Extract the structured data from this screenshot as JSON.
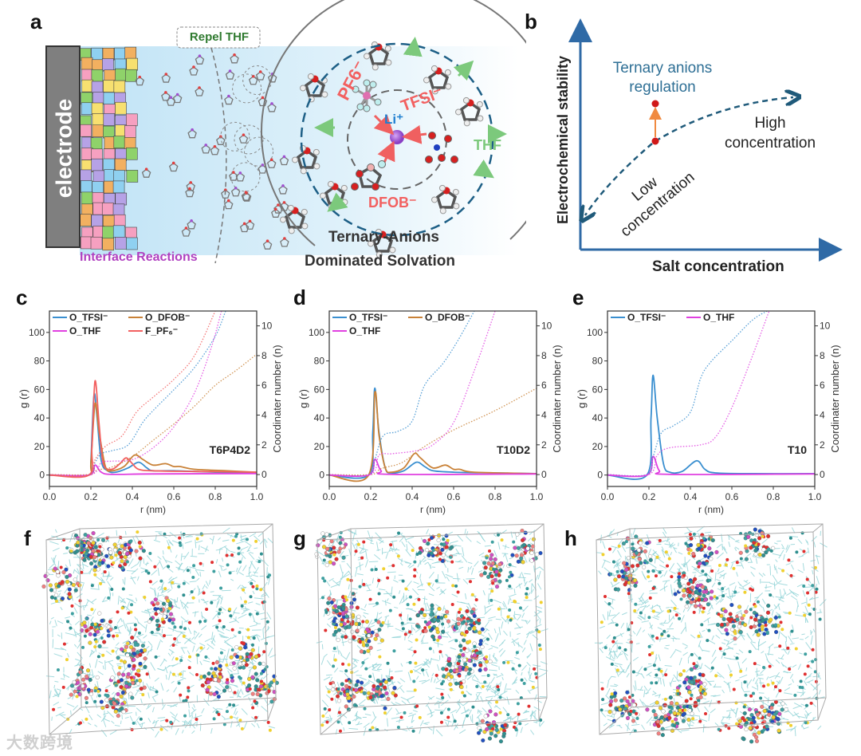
{
  "panels": {
    "a": "a",
    "b": "b",
    "c": "c",
    "d": "d",
    "e": "e",
    "f": "f",
    "g": "g",
    "h": "h"
  },
  "panel_a": {
    "electrode": "electrode",
    "repel": "Repel THF",
    "interface": "Interface Reactions",
    "solvation_line1": "Ternary-Anions",
    "solvation_line2": "Dominated Solvation",
    "pf6": "PF6⁻",
    "tfsi": "TFSI⁻",
    "li": "Li⁺",
    "dfob": "DFOB⁻",
    "thf": "THF"
  },
  "panel_b": {
    "ylabel": "Electrochemical stability",
    "xlabel": "Salt concentration",
    "regulation_1": "Ternary anions",
    "regulation_2": "regulation",
    "high_1": "High",
    "high_2": "concentration",
    "low_1": "Low",
    "low_2": "concentration"
  },
  "colors": {
    "tfsi": "#3a8fd0",
    "dfob": "#c98238",
    "thf": "#e040e0",
    "pf6": "#f26060",
    "text_blue": "#2e6f95",
    "bg_blue": "#cfe9f7"
  },
  "watermark": "大数跨境",
  "chart_data": [
    {
      "type": "line",
      "panel": "c",
      "annotation": "T6P4D2",
      "xlabel": "r (nm)",
      "ylabel": "g (r)",
      "y2label": "Coordinater number (n)",
      "xlim": [
        0,
        1.0
      ],
      "ylim": [
        -8,
        115
      ],
      "y2lim": [
        -0.8,
        11.0
      ],
      "xticks": [
        "0.0",
        "0.2",
        "0.4",
        "0.6",
        "0.8",
        "1.0"
      ],
      "yticks": [
        "0",
        "20",
        "40",
        "60",
        "80",
        "100"
      ],
      "y2ticks": [
        "0",
        "2",
        "4",
        "6",
        "8",
        "10"
      ],
      "legend": [
        "O_TFSI⁻",
        "O_DFOB⁻",
        "O_THF",
        "F_PF₆⁻"
      ],
      "series": [
        {
          "name": "O_TFSI⁻",
          "key": "tfsi",
          "axis": "g",
          "x": [
            0,
            0.19,
            0.2,
            0.215,
            0.23,
            0.25,
            0.28,
            0.32,
            0.38,
            0.43,
            0.47,
            0.5,
            0.6,
            0.8,
            1.0
          ],
          "y": [
            0,
            0,
            10,
            56,
            40,
            10,
            3,
            2,
            5,
            9,
            5,
            3,
            3,
            2,
            1.5
          ]
        },
        {
          "name": "O_DFOB⁻",
          "key": "dfob",
          "axis": "g",
          "x": [
            0,
            0.19,
            0.2,
            0.22,
            0.24,
            0.27,
            0.3,
            0.36,
            0.41,
            0.45,
            0.5,
            0.56,
            0.6,
            0.63,
            0.7,
            0.85,
            1.0
          ],
          "y": [
            0,
            0,
            8,
            50,
            30,
            6,
            3,
            6,
            14,
            11,
            7,
            8,
            6,
            6,
            4,
            3,
            2
          ]
        },
        {
          "name": "O_THF",
          "key": "thf",
          "axis": "g",
          "x": [
            0,
            0.19,
            0.22,
            0.25,
            0.3,
            0.5,
            1.0
          ],
          "y": [
            0,
            0,
            7,
            2,
            0.5,
            0.8,
            1
          ]
        },
        {
          "name": "F_PF₆⁻",
          "key": "pf6",
          "axis": "g",
          "x": [
            0,
            0.19,
            0.205,
            0.22,
            0.24,
            0.26,
            0.3,
            0.34,
            0.37,
            0.4,
            0.43,
            0.5,
            0.7,
            1.0
          ],
          "y": [
            0,
            0,
            20,
            66,
            35,
            8,
            4,
            8,
            12,
            8,
            4,
            3,
            2.5,
            2
          ]
        },
        {
          "name": "n O_TFSI⁻",
          "key": "tfsi",
          "axis": "n",
          "x": [
            0,
            0.19,
            0.22,
            0.25,
            0.3,
            0.38,
            0.45,
            0.5,
            0.6,
            0.7,
            0.8,
            0.85
          ],
          "y": [
            0,
            0,
            0.8,
            1.4,
            1.6,
            2.0,
            3.5,
            4.3,
            5.7,
            7.2,
            9.3,
            11
          ]
        },
        {
          "name": "n O_DFOB⁻",
          "key": "dfob",
          "axis": "n",
          "x": [
            0,
            0.19,
            0.23,
            0.3,
            0.4,
            0.5,
            0.6,
            0.7,
            0.8,
            0.9,
            1.0
          ],
          "y": [
            0,
            0,
            0.3,
            0.5,
            1.2,
            2.3,
            3.4,
            4.6,
            6,
            7,
            8.1
          ]
        },
        {
          "name": "n O_THF",
          "key": "thf",
          "axis": "n",
          "x": [
            0,
            0.2,
            0.25,
            0.3,
            0.4,
            0.5,
            0.6,
            0.7,
            0.78,
            0.83
          ],
          "y": [
            0,
            0,
            0.8,
            0.9,
            1.0,
            1.8,
            3.2,
            5.5,
            8.5,
            11
          ]
        },
        {
          "name": "n F_PF₆⁻",
          "key": "pf6",
          "axis": "n",
          "x": [
            0,
            0.19,
            0.22,
            0.27,
            0.35,
            0.42,
            0.5,
            0.6,
            0.7,
            0.8
          ],
          "y": [
            0,
            0,
            1.0,
            1.9,
            2.6,
            4.2,
            5.2,
            6.4,
            8.0,
            11
          ]
        }
      ]
    },
    {
      "type": "line",
      "panel": "d",
      "annotation": "T10D2",
      "xlabel": "r (nm)",
      "ylabel": "g (r)",
      "y2label": "Coordinater number (n)",
      "xlim": [
        0,
        1.0
      ],
      "ylim": [
        -8,
        115
      ],
      "y2lim": [
        -0.8,
        11.0
      ],
      "xticks": [
        "0.0",
        "0.2",
        "0.4",
        "0.6",
        "0.8",
        "1.0"
      ],
      "yticks": [
        "0",
        "20",
        "40",
        "60",
        "80",
        "100"
      ],
      "y2ticks": [
        "0",
        "2",
        "4",
        "6",
        "8",
        "10"
      ],
      "legend": [
        "O_TFSI⁻",
        "O_DFOB⁻",
        "O_THF"
      ],
      "series": [
        {
          "name": "O_TFSI⁻",
          "key": "tfsi",
          "axis": "g",
          "x": [
            0,
            0.19,
            0.21,
            0.22,
            0.24,
            0.27,
            0.3,
            0.36,
            0.42,
            0.46,
            0.5,
            0.6,
            0.8,
            1.0
          ],
          "y": [
            0,
            0,
            30,
            61,
            30,
            5,
            1.5,
            3,
            9,
            6,
            3,
            2,
            1.5,
            1
          ]
        },
        {
          "name": "O_DFOB⁻",
          "key": "dfob",
          "axis": "g",
          "x": [
            0,
            0.19,
            0.22,
            0.24,
            0.27,
            0.3,
            0.36,
            0.41,
            0.44,
            0.5,
            0.56,
            0.6,
            0.63,
            0.7,
            1.0
          ],
          "y": [
            0,
            0,
            58,
            28,
            5,
            2,
            5,
            15,
            12,
            5,
            7,
            4,
            4,
            2,
            1
          ]
        },
        {
          "name": "O_THF",
          "key": "thf",
          "axis": "g",
          "x": [
            0,
            0.19,
            0.22,
            0.25,
            0.3,
            1.0
          ],
          "y": [
            0,
            0,
            11,
            3,
            0.5,
            0.8
          ]
        },
        {
          "name": "n O_TFSI⁻",
          "key": "tfsi",
          "axis": "n",
          "x": [
            0,
            0.19,
            0.22,
            0.26,
            0.33,
            0.4,
            0.46,
            0.55,
            0.62,
            0.7
          ],
          "y": [
            0,
            0,
            1,
            2.6,
            2.9,
            3.6,
            6,
            7.5,
            9,
            11
          ]
        },
        {
          "name": "n O_DFOB⁻",
          "key": "dfob",
          "axis": "n",
          "x": [
            0,
            0.2,
            0.25,
            0.35,
            0.45,
            0.6,
            0.8,
            1.0
          ],
          "y": [
            0,
            0,
            0.4,
            0.8,
            1.8,
            3,
            4.3,
            5.8
          ]
        },
        {
          "name": "n O_THF",
          "key": "thf",
          "axis": "n",
          "x": [
            0,
            0.2,
            0.24,
            0.3,
            0.42,
            0.5,
            0.6,
            0.7,
            0.8
          ],
          "y": [
            0,
            0,
            1.3,
            1.4,
            1.6,
            2.0,
            3.5,
            7,
            11
          ]
        }
      ]
    },
    {
      "type": "line",
      "panel": "e",
      "annotation": "T10",
      "xlabel": "r (nm)",
      "ylabel": "g (r)",
      "y2label": "Coordinater number (n)",
      "xlim": [
        0,
        1.0
      ],
      "ylim": [
        -8,
        115
      ],
      "y2lim": [
        -0.8,
        11.0
      ],
      "xticks": [
        "0.0",
        "0.2",
        "0.4",
        "0.6",
        "0.8",
        "1.0"
      ],
      "yticks": [
        "0",
        "20",
        "40",
        "60",
        "80",
        "100"
      ],
      "y2ticks": [
        "0",
        "2",
        "4",
        "6",
        "8",
        "10"
      ],
      "legend": [
        "O_TFSI⁻",
        "O_THF"
      ],
      "series": [
        {
          "name": "O_TFSI⁻",
          "key": "tfsi",
          "axis": "g",
          "x": [
            0,
            0.19,
            0.21,
            0.22,
            0.24,
            0.27,
            0.3,
            0.36,
            0.43,
            0.47,
            0.52,
            0.7,
            1.0
          ],
          "y": [
            0,
            0,
            40,
            70,
            40,
            8,
            2,
            2.5,
            10,
            4,
            1.5,
            1,
            1
          ]
        },
        {
          "name": "O_THF",
          "key": "thf",
          "axis": "g",
          "x": [
            0,
            0.19,
            0.22,
            0.25,
            0.3,
            1.0
          ],
          "y": [
            0,
            0,
            13,
            3,
            0.5,
            0.8
          ]
        },
        {
          "name": "n O_TFSI⁻",
          "key": "tfsi",
          "axis": "n",
          "x": [
            0,
            0.19,
            0.22,
            0.26,
            0.32,
            0.4,
            0.45,
            0.5,
            0.6,
            0.7,
            0.77
          ],
          "y": [
            0,
            0,
            1.2,
            2.8,
            3.3,
            4.2,
            6.5,
            7.6,
            9,
            10.4,
            11
          ]
        },
        {
          "name": "n O_THF",
          "key": "thf",
          "axis": "n",
          "x": [
            0,
            0.2,
            0.24,
            0.3,
            0.45,
            0.52,
            0.6,
            0.7,
            0.78
          ],
          "y": [
            0,
            0,
            1.3,
            1.8,
            2.0,
            2.5,
            4.5,
            8,
            11
          ]
        }
      ]
    }
  ]
}
